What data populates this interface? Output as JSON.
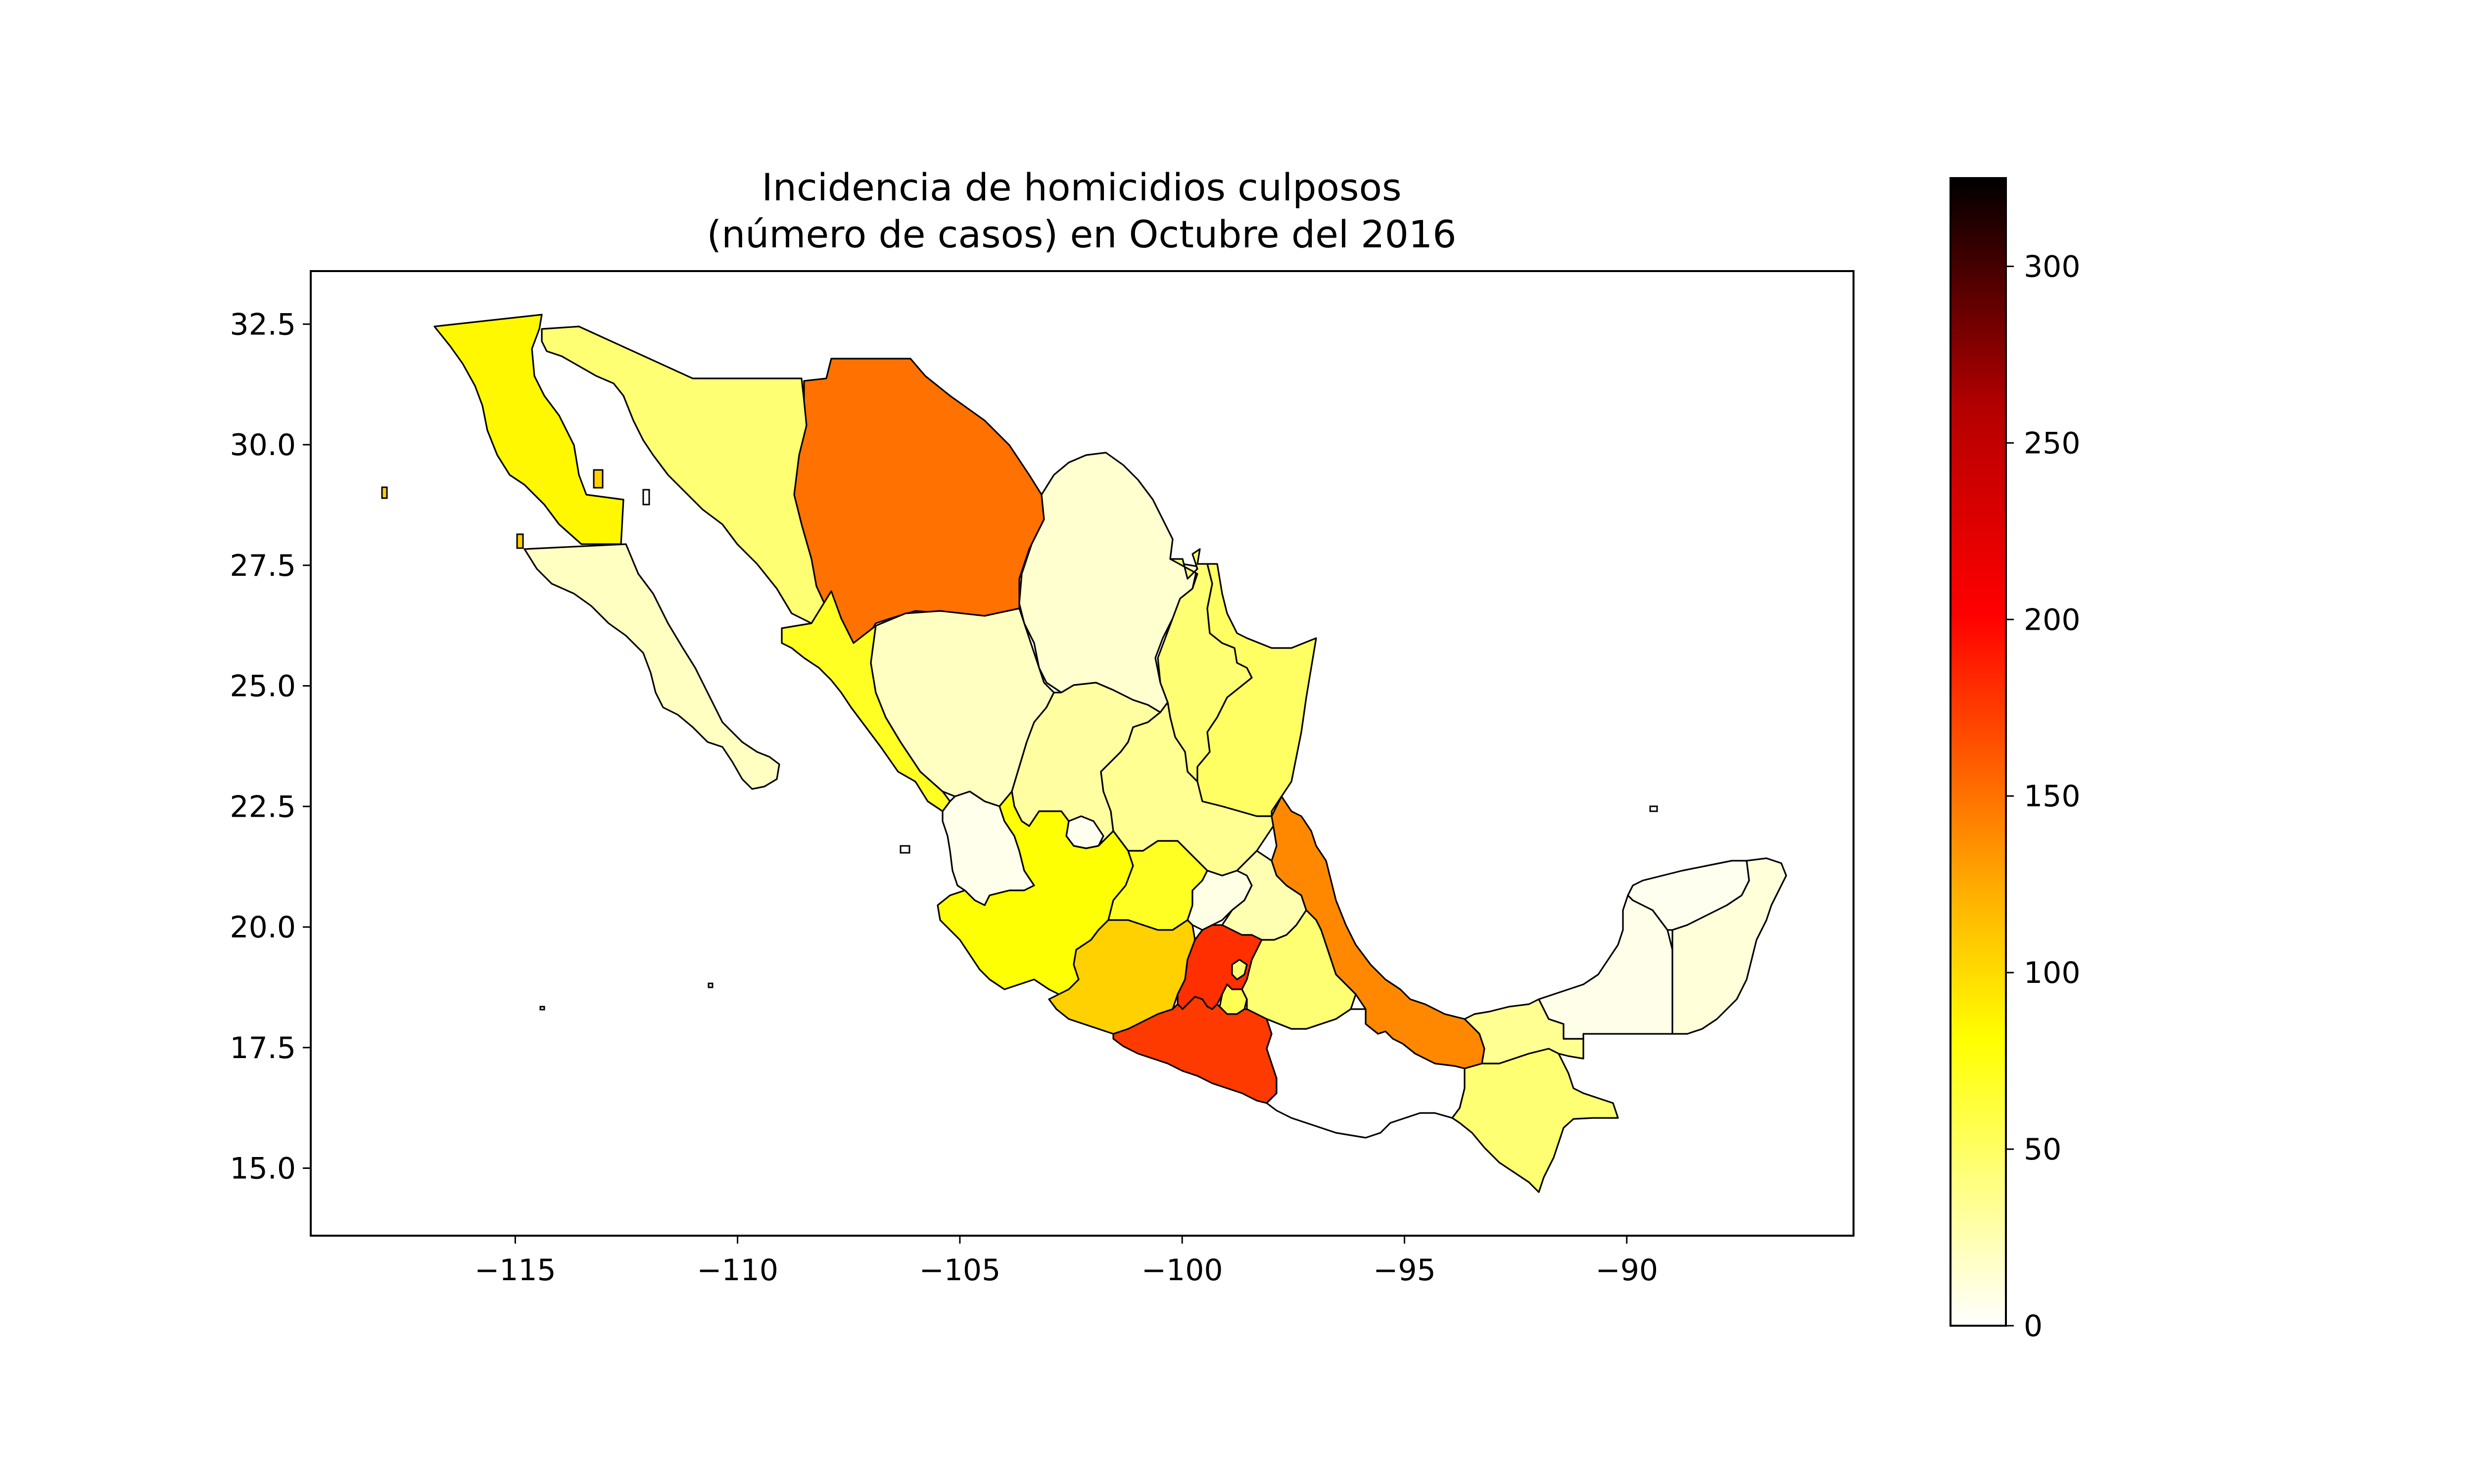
{
  "chart_data": {
    "type": "choropleth",
    "title": "Incidencia de homicidios culposos\n(número de casos) en Octubre del 2016",
    "title_lines": [
      "Incidencia de homicidios culposos",
      "(número de casos) en Octubre del 2016"
    ],
    "xticks": [
      -115,
      -110,
      -105,
      -100,
      -95,
      -90
    ],
    "xtick_labels": [
      "−115",
      "−110",
      "−105",
      "−100",
      "−95",
      "−90"
    ],
    "yticks": [
      15.0,
      17.5,
      20.0,
      22.5,
      25.0,
      27.5,
      30.0,
      32.5
    ],
    "ytick_labels": [
      "15.0",
      "17.5",
      "20.0",
      "22.5",
      "25.0",
      "27.5",
      "30.0",
      "32.5"
    ],
    "xlim": [
      -119.6,
      -84.9
    ],
    "ylim": [
      13.6,
      33.6
    ],
    "grid": false,
    "colorbar": {
      "colormap": "hot_r",
      "range": [
        0,
        325
      ],
      "ticks": [
        0,
        50,
        100,
        150,
        200,
        250,
        300
      ],
      "tick_labels": [
        "0",
        "50",
        "100",
        "150",
        "200",
        "250",
        "300"
      ],
      "stops": [
        "#ffffff",
        "#ffff9a",
        "#ffff00",
        "#ffb400",
        "#ff6400",
        "#ff0000",
        "#b40000",
        "#000000"
      ]
    },
    "regions": [
      {
        "name": "Baja California",
        "value": 85
      },
      {
        "name": "Baja California Sur",
        "value": 20
      },
      {
        "name": "Sonora",
        "value": 45
      },
      {
        "name": "Chihuahua",
        "value": 150
      },
      {
        "name": "Sinaloa",
        "value": 70
      },
      {
        "name": "Durango",
        "value": 20
      },
      {
        "name": "Coahuila",
        "value": 15
      },
      {
        "name": "Nuevo León",
        "value": 45
      },
      {
        "name": "Tamaulipas",
        "value": 50
      },
      {
        "name": "Zacatecas",
        "value": 30
      },
      {
        "name": "San Luis Potosí",
        "value": 35
      },
      {
        "name": "Nayarit",
        "value": 6
      },
      {
        "name": "Aguascalientes",
        "value": 5
      },
      {
        "name": "Jalisco",
        "value": 80
      },
      {
        "name": "Guanajuato",
        "value": 70
      },
      {
        "name": "Querétaro",
        "value": 8
      },
      {
        "name": "Hidalgo",
        "value": 25
      },
      {
        "name": "Veracruz",
        "value": 140
      },
      {
        "name": "Michoacán",
        "value": 105
      },
      {
        "name": "Estado de México",
        "value": 180
      },
      {
        "name": "Ciudad de México",
        "value": 45
      },
      {
        "name": "Morelos",
        "value": 55
      },
      {
        "name": "Tlaxcala",
        "value": 30
      },
      {
        "name": "Puebla",
        "value": 45
      },
      {
        "name": "Guerrero",
        "value": 175
      },
      {
        "name": "Oaxaca",
        "value": 0
      },
      {
        "name": "Tabasco",
        "value": 35
      },
      {
        "name": "Chiapas",
        "value": 45
      },
      {
        "name": "Campeche",
        "value": 7
      },
      {
        "name": "Yucatán",
        "value": 5
      },
      {
        "name": "Quintana Roo",
        "value": 12
      }
    ]
  }
}
